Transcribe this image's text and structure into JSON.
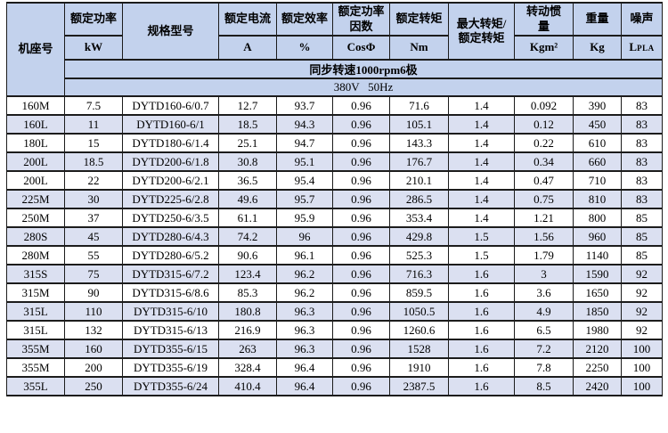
{
  "table": {
    "columns": [
      {
        "title": "机座号"
      },
      {
        "title": "额定功率",
        "unit": "kW"
      },
      {
        "title": "规格型号"
      },
      {
        "title": "额定电流",
        "unit": "A"
      },
      {
        "title": "额定效率",
        "unit": "%"
      },
      {
        "title": "额定功率因数",
        "unit": "CosΦ"
      },
      {
        "title": "额定转矩",
        "unit": "Nm"
      },
      {
        "title": "最大转矩/额定转矩"
      },
      {
        "title": "转动惯量",
        "unit": "Kgm²"
      },
      {
        "title": "重量",
        "unit": "Kg"
      },
      {
        "title": "噪声",
        "unit_main": "L",
        "unit_sub": "PLA"
      }
    ],
    "banners": {
      "speed": "同步转速1000rpm6极",
      "voltage": "380V   50Hz"
    },
    "rows": [
      [
        "160M",
        "7.5",
        "DYTD160-6/0.7",
        "12.7",
        "93.7",
        "0.96",
        "71.6",
        "1.4",
        "0.092",
        "390",
        "83"
      ],
      [
        "160L",
        "11",
        "DYTD160-6/1",
        "18.5",
        "94.3",
        "0.96",
        "105.1",
        "1.4",
        "0.12",
        "450",
        "83"
      ],
      [
        "180L",
        "15",
        "DYTD180-6/1.4",
        "25.1",
        "94.7",
        "0.96",
        "143.3",
        "1.4",
        "0.22",
        "610",
        "83"
      ],
      [
        "200L",
        "18.5",
        "DYTD200-6/1.8",
        "30.8",
        "95.1",
        "0.96",
        "176.7",
        "1.4",
        "0.34",
        "660",
        "83"
      ],
      [
        "200L",
        "22",
        "DYTD200-6/2.1",
        "36.5",
        "95.4",
        "0.96",
        "210.1",
        "1.4",
        "0.47",
        "710",
        "83"
      ],
      [
        "225M",
        "30",
        "DYTD225-6/2.8",
        "49.6",
        "95.7",
        "0.96",
        "286.5",
        "1.4",
        "0.75",
        "810",
        "83"
      ],
      [
        "250M",
        "37",
        "DYTD250-6/3.5",
        "61.1",
        "95.9",
        "0.96",
        "353.4",
        "1.4",
        "1.21",
        "800",
        "85"
      ],
      [
        "280S",
        "45",
        "DYTD280-6/4.3",
        "74.2",
        "96",
        "0.96",
        "429.8",
        "1.5",
        "1.56",
        "960",
        "85"
      ],
      [
        "280M",
        "55",
        "DYTD280-6/5.2",
        "90.6",
        "96.1",
        "0.96",
        "525.3",
        "1.5",
        "1.79",
        "1140",
        "85"
      ],
      [
        "315S",
        "75",
        "DYTD315-6/7.2",
        "123.4",
        "96.2",
        "0.96",
        "716.3",
        "1.6",
        "3",
        "1590",
        "92"
      ],
      [
        "315M",
        "90",
        "DYTD315-6/8.6",
        "85.3",
        "96.2",
        "0.96",
        "859.5",
        "1.6",
        "3.6",
        "1650",
        "92"
      ],
      [
        "315L",
        "110",
        "DYTD315-6/10",
        "180.8",
        "96.3",
        "0.96",
        "1050.5",
        "1.6",
        "4.9",
        "1850",
        "92"
      ],
      [
        "315L",
        "132",
        "DYTD315-6/13",
        "216.9",
        "96.3",
        "0.96",
        "1260.6",
        "1.6",
        "6.5",
        "1980",
        "92"
      ],
      [
        "355M",
        "160",
        "DYTD355-6/15",
        "263",
        "96.3",
        "0.96",
        "1528",
        "1.6",
        "7.2",
        "2120",
        "100"
      ],
      [
        "355M",
        "200",
        "DYTD355-6/19",
        "328.4",
        "96.4",
        "0.96",
        "1910",
        "1.6",
        "7.8",
        "2250",
        "100"
      ],
      [
        "355L",
        "250",
        "DYTD355-6/24",
        "410.4",
        "96.4",
        "0.96",
        "2387.5",
        "1.6",
        "8.5",
        "2420",
        "100"
      ]
    ]
  },
  "colors": {
    "header_bg": "#c3d2ed",
    "alt_row_bg": "#dbe0f1",
    "border": "#1c1c1c",
    "text": "#000000"
  }
}
